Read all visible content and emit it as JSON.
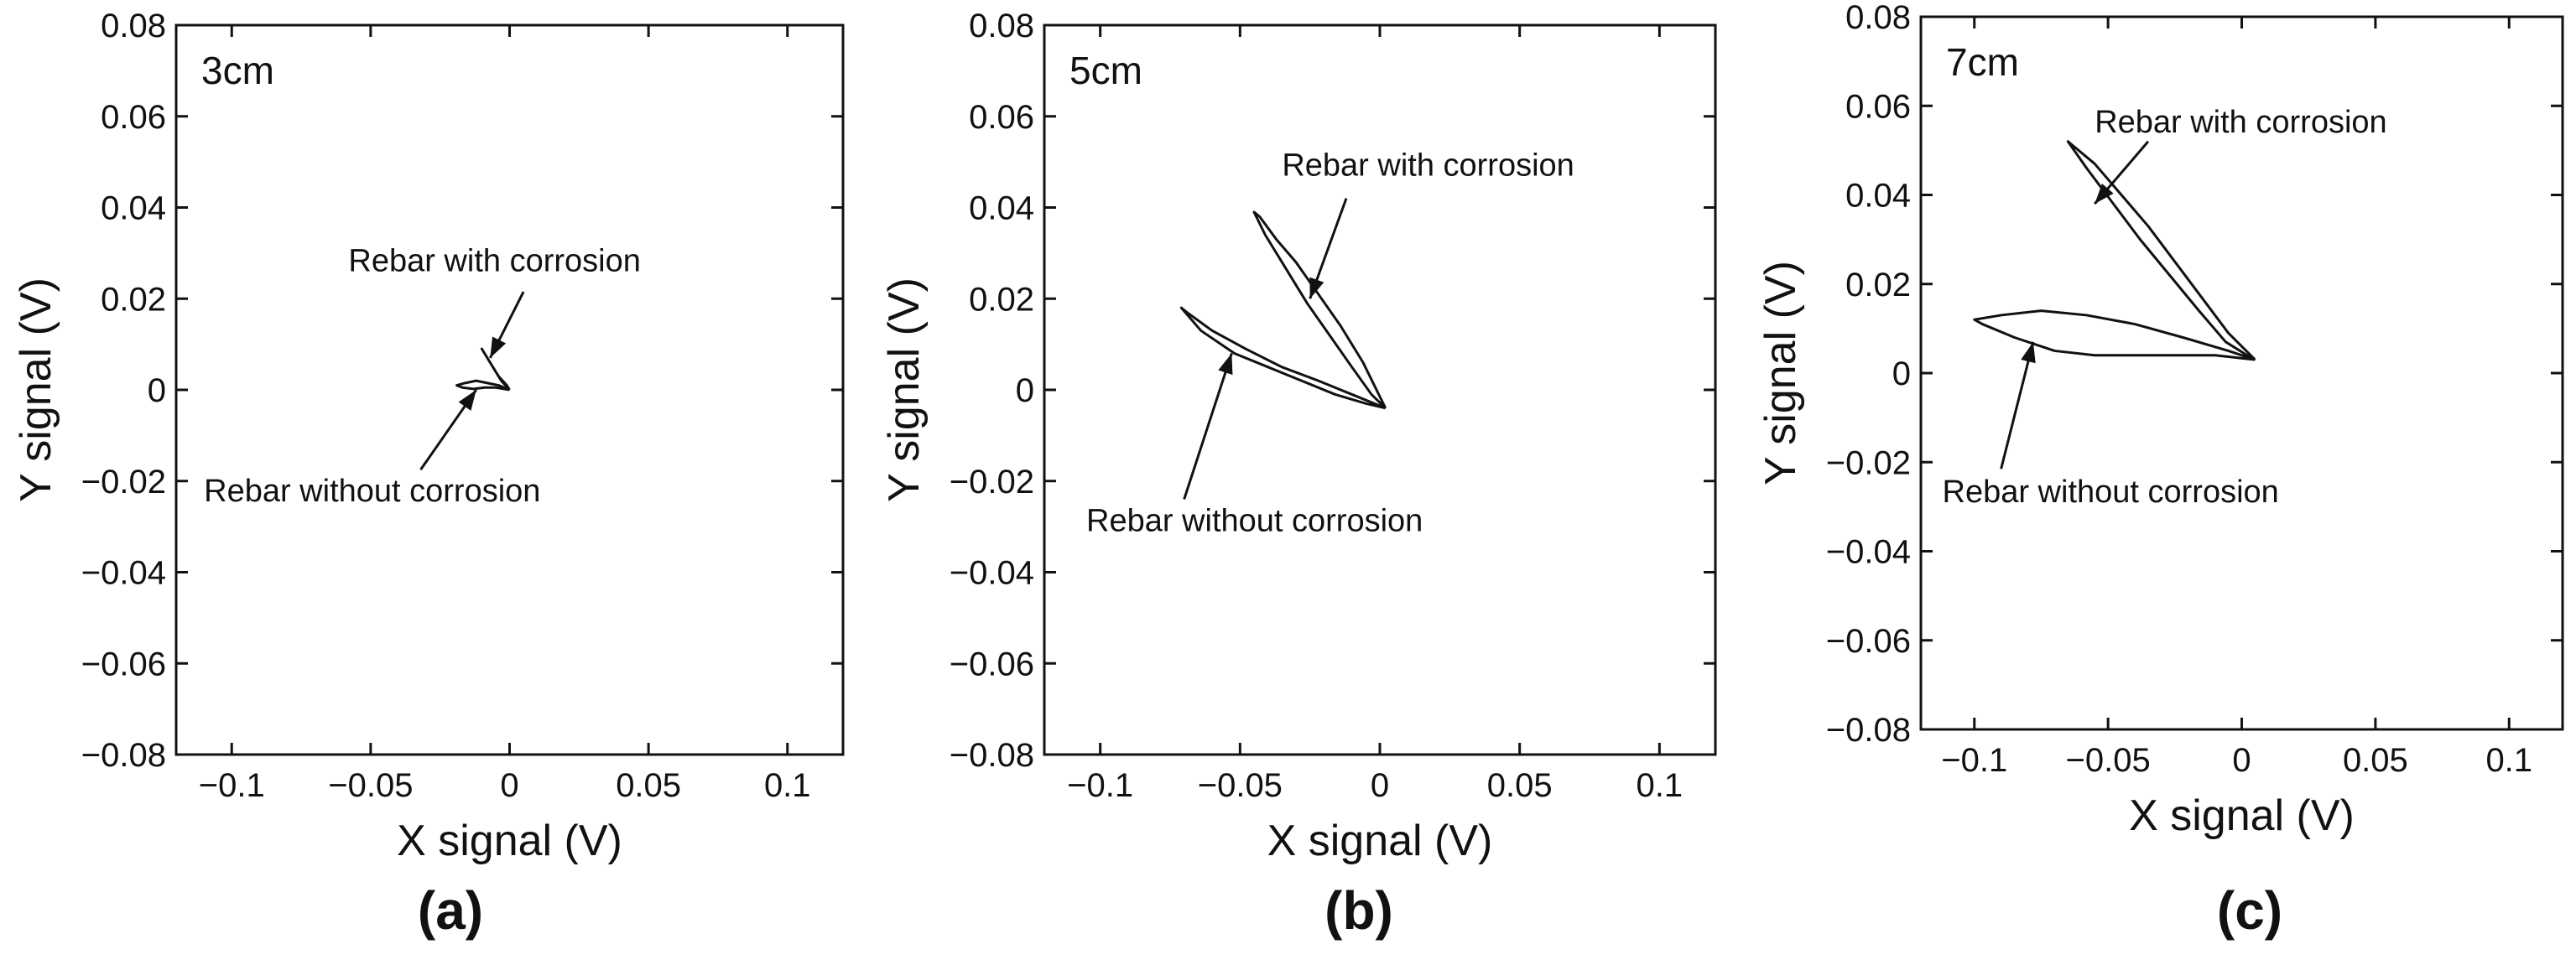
{
  "chart_data": [
    {
      "type": "line",
      "panel_label": "(a)",
      "depth_label": "3cm",
      "xlabel": "X signal (V)",
      "ylabel": "Y signal (V)",
      "xlim": [
        -0.12,
        0.12
      ],
      "ylim": [
        -0.08,
        0.08
      ],
      "xticks": [
        -0.1,
        -0.05,
        0,
        0.05,
        0.1
      ],
      "xtick_labels": [
        "−0.1",
        "−0.05",
        "0",
        "0.05",
        "0.1"
      ],
      "yticks": [
        0.08,
        0.06,
        0.04,
        0.02,
        0,
        -0.02,
        -0.04,
        -0.06,
        -0.08
      ],
      "ytick_labels": [
        "0.08",
        "0.06",
        "0.04",
        "0.02",
        "0",
        "−0.02",
        "−0.04",
        "−0.06",
        "−0.08"
      ],
      "series": [
        {
          "name": "Rebar with corrosion",
          "x": [
            0,
            -0.003,
            -0.006,
            -0.008,
            -0.009,
            -0.01,
            -0.007,
            -0.004,
            -0.001,
            0
          ],
          "y": [
            0,
            0.002,
            0.005,
            0.007,
            0.008,
            0.009,
            0.006,
            0.003,
            0.001,
            0
          ]
        },
        {
          "name": "Rebar without corrosion",
          "x": [
            0,
            -0.004,
            -0.008,
            -0.012,
            -0.016,
            -0.019,
            -0.017,
            -0.013,
            -0.009,
            -0.005,
            -0.002,
            0
          ],
          "y": [
            0,
            0.001,
            0.0015,
            0.002,
            0.0015,
            0.001,
            0.0005,
            0.0002,
            0.0005,
            0.0005,
            0.0002,
            0
          ]
        }
      ],
      "annotations": [
        {
          "text": "Rebar with corrosion",
          "x": -0.007,
          "y": 0.007,
          "label_x": -0.058,
          "label_y": 0.026,
          "arrow_from_x": 0.005,
          "arrow_from_y": 0.0215
        },
        {
          "text": "Rebar without corrosion",
          "x": -0.012,
          "y": 0,
          "label_x": -0.11,
          "label_y": -0.0245,
          "arrow_from_x": -0.032,
          "arrow_from_y": -0.0175
        }
      ]
    },
    {
      "type": "line",
      "panel_label": "(b)",
      "depth_label": "5cm",
      "xlabel": "X signal (V)",
      "ylabel": "Y signal (V)",
      "xlim": [
        -0.12,
        0.12
      ],
      "ylim": [
        -0.08,
        0.08
      ],
      "xticks": [
        -0.1,
        -0.05,
        0,
        0.05,
        0.1
      ],
      "xtick_labels": [
        "−0.1",
        "−0.05",
        "0",
        "0.05",
        "0.1"
      ],
      "yticks": [
        0.08,
        0.06,
        0.04,
        0.02,
        0,
        -0.02,
        -0.04,
        -0.06,
        -0.08
      ],
      "ytick_labels": [
        "0.08",
        "0.06",
        "0.04",
        "0.02",
        "0",
        "−0.02",
        "−0.04",
        "−0.06",
        "−0.08"
      ],
      "series": [
        {
          "name": "Rebar with corrosion",
          "x": [
            0.002,
            -0.006,
            -0.014,
            -0.022,
            -0.03,
            -0.037,
            -0.043,
            -0.045,
            -0.041,
            -0.034,
            -0.026,
            -0.018,
            -0.01,
            -0.003,
            0.002
          ],
          "y": [
            -0.004,
            0.006,
            0.014,
            0.021,
            0.028,
            0.033,
            0.038,
            0.039,
            0.034,
            0.027,
            0.019,
            0.012,
            0.005,
            -0.001,
            -0.004
          ]
        },
        {
          "name": "Rebar without corrosion",
          "x": [
            0.002,
            -0.01,
            -0.022,
            -0.035,
            -0.048,
            -0.06,
            -0.069,
            -0.071,
            -0.064,
            -0.052,
            -0.04,
            -0.028,
            -0.016,
            -0.005,
            0.002
          ],
          "y": [
            -0.004,
            -0.001,
            0.002,
            0.005,
            0.009,
            0.013,
            0.017,
            0.018,
            0.013,
            0.008,
            0.005,
            0.002,
            -0.001,
            -0.003,
            -0.004
          ]
        }
      ],
      "annotations": [
        {
          "text": "Rebar with corrosion",
          "x": -0.025,
          "y": 0.02,
          "label_x": -0.035,
          "label_y": 0.047,
          "arrow_from_x": -0.012,
          "arrow_from_y": 0.042
        },
        {
          "text": "Rebar without corrosion",
          "x": -0.053,
          "y": 0.008,
          "label_x": -0.105,
          "label_y": -0.031,
          "arrow_from_x": -0.07,
          "arrow_from_y": -0.024
        }
      ]
    },
    {
      "type": "line",
      "panel_label": "(c)",
      "depth_label": "7cm",
      "xlabel": "X signal (V)",
      "ylabel": "Y signal (V)",
      "xlim": [
        -0.12,
        0.12
      ],
      "ylim": [
        -0.08,
        0.08
      ],
      "xticks": [
        -0.1,
        -0.05,
        0,
        0.05,
        0.1
      ],
      "xtick_labels": [
        "−0.1",
        "−0.05",
        "0",
        "0.05",
        "0.1"
      ],
      "yticks": [
        0.08,
        0.06,
        0.04,
        0.02,
        0,
        -0.02,
        -0.04,
        -0.06,
        -0.08
      ],
      "ytick_labels": [
        "0.08",
        "0.06",
        "0.04",
        "0.02",
        "0",
        "−0.02",
        "−0.04",
        "−0.06",
        "−0.08"
      ],
      "series": [
        {
          "name": "Rebar with corrosion",
          "x": [
            0.005,
            -0.005,
            -0.015,
            -0.025,
            -0.035,
            -0.045,
            -0.055,
            -0.063,
            -0.065,
            -0.058,
            -0.048,
            -0.038,
            -0.027,
            -0.016,
            -0.006,
            0.002,
            0.005
          ],
          "y": [
            0.003,
            0.009,
            0.017,
            0.025,
            0.033,
            0.04,
            0.047,
            0.051,
            0.052,
            0.046,
            0.038,
            0.03,
            0.022,
            0.014,
            0.007,
            0.004,
            0.003
          ]
        },
        {
          "name": "Rebar without corrosion",
          "x": [
            0.005,
            -0.01,
            -0.025,
            -0.04,
            -0.055,
            -0.07,
            -0.085,
            -0.097,
            -0.1,
            -0.09,
            -0.075,
            -0.058,
            -0.04,
            -0.022,
            -0.005,
            0.005
          ],
          "y": [
            0.003,
            0.004,
            0.004,
            0.004,
            0.004,
            0.005,
            0.008,
            0.011,
            0.012,
            0.013,
            0.014,
            0.013,
            0.011,
            0.008,
            0.005,
            0.003
          ]
        }
      ],
      "annotations": [
        {
          "text": "Rebar with corrosion",
          "x": -0.055,
          "y": 0.038,
          "label_x": -0.055,
          "label_y": 0.054,
          "arrow_from_x": -0.035,
          "arrow_from_y": 0.052
        },
        {
          "text": "Rebar without corrosion",
          "x": -0.078,
          "y": 0.007,
          "label_x": -0.112,
          "label_y": -0.029,
          "arrow_from_x": -0.09,
          "arrow_from_y": -0.0215
        }
      ]
    }
  ]
}
